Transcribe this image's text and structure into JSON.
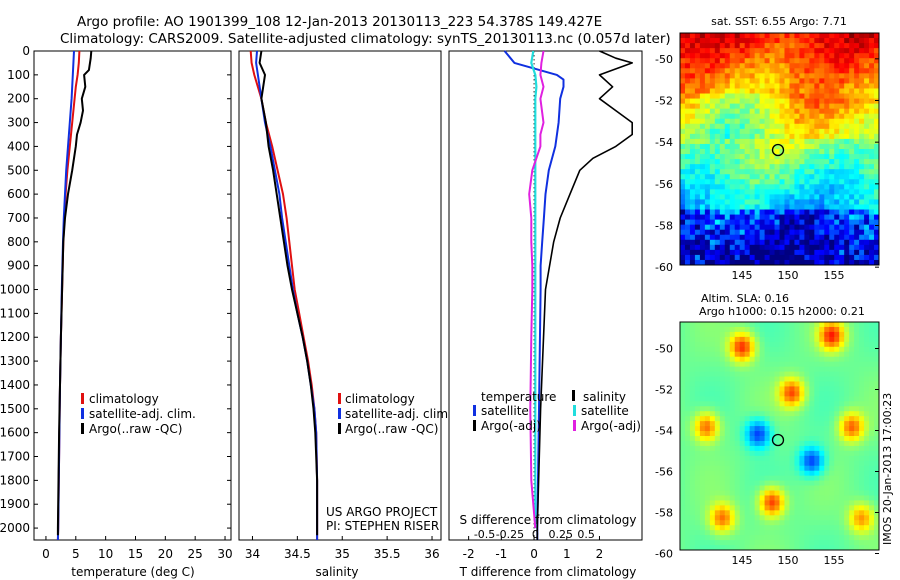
{
  "header": {
    "line1": "Argo profile: AO 1901399_108 12-Jan-2013 20130113_223 54.378S 149.427E",
    "line2": "Climatology: CARS2009. Satellite-adjusted climatology: synTS_20130113.nc (0.057d later)"
  },
  "depth_ticks": [
    "0",
    "100",
    "200",
    "300",
    "400",
    "500",
    "600",
    "700",
    "800",
    "900",
    "1000",
    "1100",
    "1200",
    "1300",
    "1400",
    "1500",
    "1600",
    "1700",
    "1800",
    "1900",
    "2000"
  ],
  "colors": {
    "climatology": "#e01010",
    "satellite": "#1030e0",
    "argo": "#000000",
    "sal_sat": "#22dddd",
    "sal_argo": "#e020e0"
  },
  "chart_data": [
    {
      "type": "line",
      "panel": "temperature",
      "xlabel": "temperature (deg C)",
      "xlim": [
        -2,
        31
      ],
      "ylim": [
        2050,
        0
      ],
      "xticks": [
        "0",
        "5",
        "10",
        "15",
        "20",
        "25",
        "30"
      ],
      "legend": [
        "climatology",
        "satellite-adj. clim.",
        "Argo(..raw -QC)"
      ],
      "series": [
        {
          "name": "climatology",
          "depth": [
            0,
            50,
            100,
            150,
            200,
            300,
            400,
            500,
            600,
            700,
            800,
            900,
            1000,
            1200,
            1400,
            1600,
            1800,
            2000,
            2050
          ],
          "values": [
            5.6,
            5.5,
            5.3,
            5.0,
            4.8,
            4.4,
            4.0,
            3.6,
            3.3,
            3.1,
            2.9,
            2.8,
            2.7,
            2.5,
            2.35,
            2.25,
            2.15,
            2.05,
            2.0
          ]
        },
        {
          "name": "satellite-adj. clim.",
          "depth": [
            0,
            50,
            100,
            150,
            200,
            300,
            400,
            500,
            600,
            700,
            800,
            900,
            1000,
            1200,
            1400,
            1600,
            1800,
            2000,
            2050
          ],
          "values": [
            4.7,
            4.6,
            4.5,
            4.4,
            4.3,
            4.0,
            3.7,
            3.4,
            3.2,
            3.0,
            2.85,
            2.75,
            2.65,
            2.5,
            2.35,
            2.25,
            2.15,
            2.05,
            2.0
          ]
        },
        {
          "name": "Argo(..raw -QC)",
          "depth": [
            0,
            30,
            80,
            100,
            150,
            200,
            250,
            300,
            350,
            400,
            500,
            600,
            700,
            800,
            900,
            1000,
            1200,
            1400,
            1600,
            1800,
            2000,
            2030
          ],
          "values": [
            7.6,
            7.5,
            7.2,
            6.4,
            6.6,
            6.0,
            6.2,
            5.8,
            5.2,
            5.0,
            4.4,
            3.7,
            3.2,
            2.9,
            2.8,
            2.7,
            2.5,
            2.35,
            2.2,
            2.1,
            2.0,
            2.0
          ]
        }
      ]
    },
    {
      "type": "line",
      "panel": "salinity",
      "xlabel": "salinity",
      "xlim": [
        33.85,
        36.1
      ],
      "ylim": [
        2050,
        0
      ],
      "xticks": [
        "34",
        "34.5",
        "35",
        "35.5",
        "36"
      ],
      "legend": [
        "climatology",
        "satellite-adj. clim.",
        "Argo(..raw -QC)"
      ],
      "credit": [
        "US ARGO PROJECT",
        "PI: STEPHEN RISER"
      ],
      "series": [
        {
          "name": "climatology",
          "depth": [
            0,
            50,
            100,
            200,
            300,
            400,
            500,
            600,
            700,
            800,
            900,
            1000,
            1100,
            1200,
            1300,
            1400,
            1500,
            1600,
            1800,
            2000,
            2050
          ],
          "values": [
            33.98,
            33.99,
            34.02,
            34.1,
            34.15,
            34.22,
            34.28,
            34.34,
            34.38,
            34.41,
            34.44,
            34.47,
            34.52,
            34.57,
            34.62,
            34.66,
            34.69,
            34.71,
            34.72,
            34.72,
            34.72
          ]
        },
        {
          "name": "satellite-adj. clim.",
          "depth": [
            0,
            50,
            100,
            200,
            300,
            400,
            500,
            600,
            700,
            800,
            900,
            1000,
            1100,
            1200,
            1300,
            1400,
            1500,
            1600,
            1800,
            2000,
            2050
          ],
          "values": [
            34.05,
            34.04,
            34.06,
            34.1,
            34.14,
            34.2,
            34.25,
            34.3,
            34.33,
            34.37,
            34.41,
            34.45,
            34.5,
            34.56,
            34.61,
            34.65,
            34.69,
            34.71,
            34.72,
            34.72,
            34.72
          ]
        },
        {
          "name": "Argo(..raw -QC)",
          "depth": [
            0,
            50,
            100,
            150,
            200,
            300,
            400,
            500,
            600,
            700,
            800,
            900,
            1000,
            1100,
            1200,
            1300,
            1400,
            1500,
            1600,
            1800,
            2000,
            2030
          ],
          "values": [
            34.1,
            34.08,
            34.14,
            34.12,
            34.1,
            34.15,
            34.18,
            34.23,
            34.27,
            34.31,
            34.35,
            34.39,
            34.44,
            34.5,
            34.56,
            34.61,
            34.65,
            34.68,
            34.7,
            34.72,
            34.72,
            34.72
          ]
        }
      ]
    },
    {
      "type": "line",
      "panel": "difference",
      "xlabel": "T difference from climatology",
      "xlabel2": "S difference from climatology",
      "xlim": [
        -2.6,
        3.3
      ],
      "ylim": [
        2050,
        0
      ],
      "xticks": [
        "-2",
        "-1",
        "0",
        "1",
        "2"
      ],
      "xticks2": [
        "-0.5",
        "-0.25",
        "0",
        "0.25",
        "0.5"
      ],
      "legend_temperature": {
        "title": "temperature",
        "items": [
          "satellite",
          "Argo(-adj)"
        ]
      },
      "legend_salinity": {
        "title": "salinity",
        "items": [
          "satellite",
          "Argo(-adj)"
        ]
      },
      "series": [
        {
          "name": "T satellite",
          "depth": [
            0,
            50,
            100,
            120,
            150,
            200,
            300,
            400,
            500,
            600,
            700,
            800,
            900,
            1000,
            1500,
            2000,
            2050
          ],
          "values": [
            -0.9,
            -0.6,
            0.7,
            0.9,
            0.9,
            0.8,
            0.75,
            0.65,
            0.45,
            0.35,
            0.3,
            0.25,
            0.2,
            0.2,
            0.15,
            0.1,
            0.1
          ]
        },
        {
          "name": "T Argo(-adj)",
          "depth": [
            0,
            30,
            50,
            100,
            150,
            200,
            250,
            300,
            350,
            400,
            450,
            500,
            600,
            700,
            800,
            1000,
            1500,
            2000,
            2050
          ],
          "values": [
            2.0,
            2.5,
            3.0,
            2.0,
            2.4,
            2.0,
            2.5,
            3.0,
            3.0,
            2.5,
            1.8,
            1.4,
            1.1,
            0.8,
            0.6,
            0.35,
            0.2,
            0.1,
            0.1
          ]
        },
        {
          "name": "S satellite",
          "depth": [
            0,
            50,
            100,
            150,
            200,
            300,
            400,
            500,
            1000,
            1500,
            2000
          ],
          "values": [
            -0.02,
            -0.04,
            0.0,
            0.01,
            0.0,
            0.0,
            0.0,
            0.0,
            0.0,
            0.0,
            0.0
          ]
        },
        {
          "name": "S Argo(-adj)",
          "depth": [
            0,
            50,
            100,
            150,
            200,
            300,
            350,
            400,
            500,
            600,
            700,
            800,
            900,
            1000,
            1200,
            1500,
            1800,
            2000
          ],
          "values": [
            0.08,
            0.06,
            0.05,
            0.08,
            0.05,
            0.08,
            0.05,
            0.05,
            -0.03,
            -0.06,
            -0.04,
            -0.04,
            -0.03,
            -0.03,
            -0.04,
            -0.05,
            -0.04,
            0.0
          ]
        }
      ]
    }
  ],
  "maps": {
    "sst": {
      "title": "sat. SST: 6.55 Argo: 7.71",
      "yticks": [
        "-50",
        "-52",
        "-54",
        "-56",
        "-58",
        "-60"
      ],
      "xticks": [
        "145",
        "150",
        "155"
      ]
    },
    "sla": {
      "title1": "Altim. SLA: 0.16",
      "title2": "Argo h1000: 0.15 h2000: 0.21",
      "yticks": [
        "-50",
        "-52",
        "-54",
        "-56",
        "-58",
        "-60"
      ],
      "xticks": [
        "145",
        "150",
        "155"
      ],
      "stamp": "IMOS 20-Jan-2013 17:00:23"
    }
  }
}
